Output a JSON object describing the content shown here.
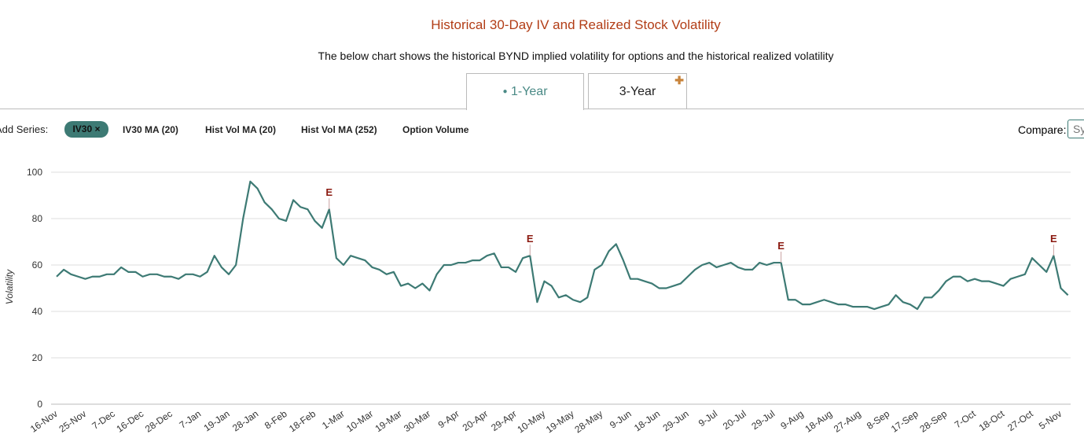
{
  "header": {
    "title": "Historical 30-Day IV and Realized Stock Volatility",
    "subtitle": "The below chart shows the historical BYND implied volatility for options and the historical realized volatility"
  },
  "tabs": [
    "1-Year",
    "3-Year"
  ],
  "toolbar": {
    "label": "Add Series:",
    "active": "IV30",
    "active_close": "×",
    "options": [
      "IV30 MA (20)",
      "Hist Vol MA (20)",
      "Hist Vol MA (252)",
      "Option Volume"
    ],
    "compare_label": "Compare:",
    "compare_placeholder": "Sy"
  },
  "chart_data": {
    "type": "line",
    "y_label": "Volatility",
    "ylim": [
      0,
      100
    ],
    "yticks": [
      0,
      20,
      40,
      60,
      80,
      100
    ],
    "grid": true,
    "categories": [
      "16-Nov",
      null,
      null,
      null,
      "25-Nov",
      null,
      null,
      null,
      "7-Dec",
      null,
      null,
      null,
      "16-Dec",
      null,
      null,
      null,
      "28-Dec",
      null,
      null,
      null,
      "7-Jan",
      null,
      null,
      null,
      "19-Jan",
      null,
      null,
      null,
      "28-Jan",
      null,
      null,
      null,
      "8-Feb",
      null,
      null,
      null,
      "18-Feb",
      null,
      null,
      null,
      "1-Mar",
      null,
      null,
      null,
      "10-Mar",
      null,
      null,
      null,
      "19-Mar",
      null,
      null,
      null,
      "30-Mar",
      null,
      null,
      null,
      "9-Apr",
      null,
      null,
      null,
      "20-Apr",
      null,
      null,
      null,
      "29-Apr",
      null,
      null,
      null,
      "10-May",
      null,
      null,
      null,
      "19-May",
      null,
      null,
      null,
      "28-May",
      null,
      null,
      null,
      "9-Jun",
      null,
      null,
      null,
      "18-Jun",
      null,
      null,
      null,
      "29-Jun",
      null,
      null,
      null,
      "9-Jul",
      null,
      null,
      null,
      "20-Jul",
      null,
      null,
      null,
      "29-Jul",
      null,
      null,
      null,
      "9-Aug",
      null,
      null,
      null,
      "18-Aug",
      null,
      null,
      null,
      "27-Aug",
      null,
      null,
      null,
      "8-Sep",
      null,
      null,
      null,
      "17-Sep",
      null,
      null,
      null,
      "28-Sep",
      null,
      null,
      null,
      "7-Oct",
      null,
      null,
      null,
      "18-Oct",
      null,
      null,
      null,
      "27-Oct",
      null,
      null,
      null,
      "5-Nov",
      null
    ],
    "series": [
      {
        "name": "IV30",
        "color": "#3d7a74",
        "values": [
          55,
          58,
          56,
          55,
          54,
          55,
          55,
          56,
          56,
          59,
          57,
          57,
          55,
          56,
          56,
          55,
          55,
          54,
          56,
          56,
          55,
          57,
          64,
          59,
          56,
          60,
          80,
          96,
          93,
          87,
          84,
          80,
          79,
          88,
          85,
          84,
          79,
          76,
          84,
          63,
          60,
          64,
          63,
          62,
          59,
          58,
          56,
          57,
          51,
          52,
          50,
          52,
          49,
          56,
          60,
          60,
          61,
          61,
          62,
          62,
          64,
          65,
          59,
          59,
          57,
          63,
          64,
          44,
          53,
          51,
          46,
          47,
          45,
          44,
          46,
          58,
          60,
          66,
          69,
          62,
          54,
          54,
          53,
          52,
          50,
          50,
          51,
          52,
          55,
          58,
          60,
          61,
          59,
          60,
          61,
          59,
          58,
          58,
          61,
          60,
          61,
          61,
          45,
          45,
          43,
          43,
          44,
          45,
          44,
          43,
          43,
          42,
          42,
          42,
          41,
          42,
          43,
          47,
          44,
          43,
          41,
          46,
          46,
          49,
          53,
          55,
          55,
          53,
          54,
          53,
          53,
          52,
          51,
          54,
          55,
          56,
          63,
          60,
          57,
          64,
          50,
          47
        ]
      }
    ],
    "annotations": [
      {
        "text": "E",
        "index": 38
      },
      {
        "text": "E",
        "index": 66
      },
      {
        "text": "E",
        "index": 101
      },
      {
        "text": "E",
        "index": 139
      }
    ]
  }
}
